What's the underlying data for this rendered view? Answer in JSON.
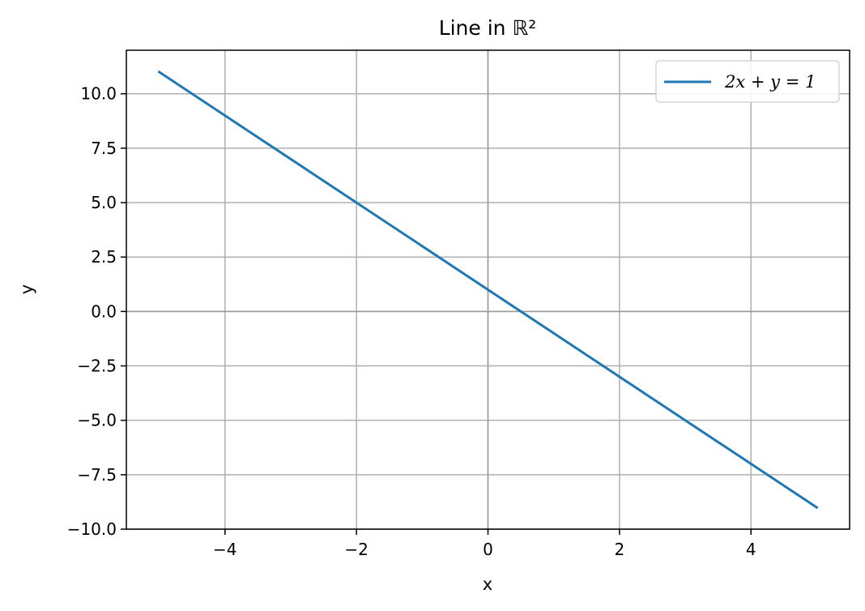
{
  "chart_data": {
    "type": "line",
    "title": "Line in ℝ²",
    "xlabel": "x",
    "ylabel": "y",
    "xlim": [
      -5.5,
      5.5
    ],
    "ylim": [
      -10.0,
      12.0
    ],
    "xticks": [
      -4,
      -2,
      0,
      2,
      4
    ],
    "xtick_labels": [
      "−4",
      "−2",
      "0",
      "2",
      "4"
    ],
    "yticks": [
      -10.0,
      -7.5,
      -5.0,
      -2.5,
      0.0,
      2.5,
      5.0,
      7.5,
      10.0
    ],
    "ytick_labels": [
      "−10.0",
      "−7.5",
      "−5.0",
      "−2.5",
      "0.0",
      "2.5",
      "5.0",
      "7.5",
      "10.0"
    ],
    "grid": true,
    "reference_lines": {
      "x": 0,
      "y": 0,
      "color": "#999999"
    },
    "legend_position": "top-right",
    "series": [
      {
        "name": "2x + y = 1",
        "color": "#1f77b4",
        "x": [
          -5,
          5
        ],
        "y": [
          11,
          -9
        ]
      }
    ]
  }
}
